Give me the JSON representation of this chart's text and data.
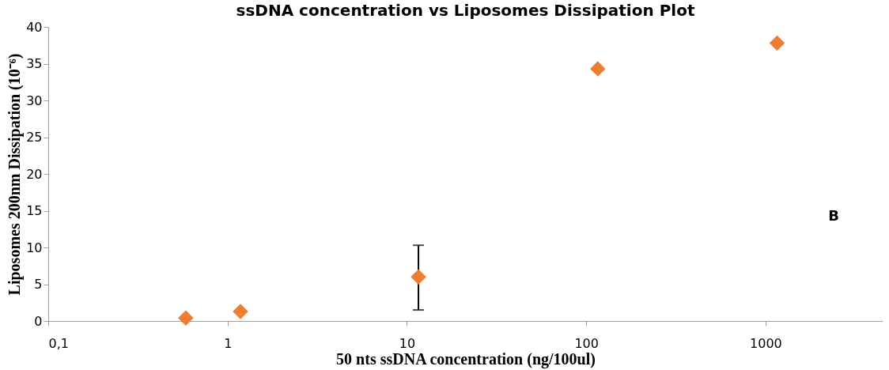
{
  "chart_data": {
    "type": "scatter",
    "title": "ssDNA concentration vs Liposomes Dissipation Plot",
    "xlabel": "50 nts ssDNA concentration (ng/100ul)",
    "ylabel": "Liposomes 200nm Dissipation (10⁻⁶)",
    "x": [
      0.585,
      1.18,
      11.6,
      116,
      1160
    ],
    "series": [
      {
        "color": "#ed7d31",
        "values": [
          0.4,
          1.3,
          6.0,
          34.3,
          37.8
        ],
        "errors": [
          null,
          null,
          [
            1.5,
            10.3
          ],
          null,
          null
        ]
      }
    ],
    "log": "x",
    "xlim": [
      0.1,
      4500
    ],
    "xticks": [
      {
        "value": 0.1,
        "label": "0,1"
      },
      1,
      10,
      100,
      1000
    ],
    "ylim": [
      0,
      40
    ],
    "yticks": [
      0,
      5,
      10,
      15,
      20,
      25,
      30,
      35,
      40
    ],
    "marker": "diamond",
    "grid": false,
    "annotations": [
      "B"
    ]
  }
}
